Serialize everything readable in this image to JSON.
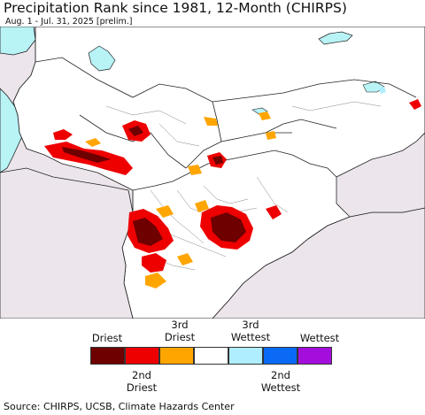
{
  "header": {
    "title": "Precipitation Rank since 1981, 12-Month (CHIRPS)",
    "subtitle": "Aug. 1 - Jul. 31, 2025 [prelim.]"
  },
  "map": {
    "colors": {
      "background": "#ece6ec",
      "land": "#ffffff",
      "water": "#b8f3f6",
      "border": "#222222"
    }
  },
  "legend": {
    "labels_top": [
      "Driest",
      "3rd\nDriest",
      "3rd\nWettest",
      "Wettest"
    ],
    "labels_bottom": [
      "2nd\nDriest",
      "2nd\nWettest"
    ],
    "swatches": [
      {
        "color": "#6e0000"
      },
      {
        "color": "#ee0000"
      },
      {
        "color": "#ffa500"
      },
      {
        "color": "#ffffff"
      },
      {
        "color": "#aeeefe"
      },
      {
        "color": "#0a6af6"
      },
      {
        "color": "#a40edc"
      }
    ]
  },
  "footer": {
    "source": "Source: CHIRPS, UCSB, Climate Hazards Center"
  }
}
